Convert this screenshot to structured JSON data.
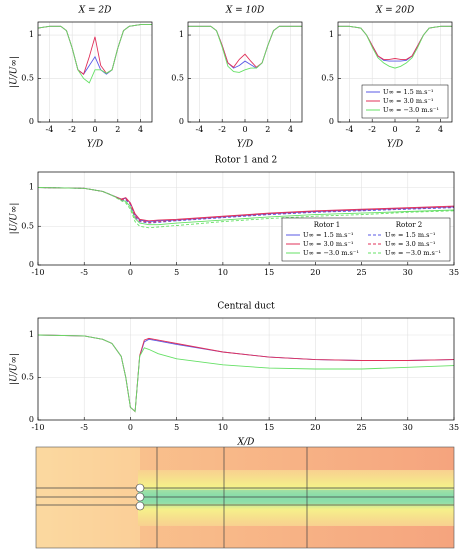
{
  "chart_data": [
    {
      "type": "line",
      "title": "X = 2D",
      "xlabel": "Y/D",
      "ylabel": "|U/U∞|",
      "xlim": [
        -5,
        5
      ],
      "xticks": [
        -4,
        -2,
        0,
        2,
        4
      ],
      "ylim": [
        0,
        1.15
      ],
      "yticks": [
        0,
        0.5,
        1
      ],
      "grid": true,
      "x": [
        -5,
        -4,
        -3,
        -2.5,
        -2,
        -1.5,
        -1,
        -0.5,
        0,
        0.5,
        1,
        1.5,
        2,
        2.5,
        3,
        4,
        5
      ],
      "series": [
        {
          "color": "#5a5ae6",
          "values": [
            1.08,
            1.1,
            1.1,
            1.05,
            0.85,
            0.6,
            0.55,
            0.65,
            0.75,
            0.6,
            0.55,
            0.6,
            0.85,
            1.05,
            1.1,
            1.12,
            1.12
          ]
        },
        {
          "color": "#e0305a",
          "values": [
            1.08,
            1.1,
            1.1,
            1.05,
            0.85,
            0.6,
            0.55,
            0.75,
            0.98,
            0.65,
            0.56,
            0.6,
            0.85,
            1.05,
            1.1,
            1.12,
            1.12
          ]
        },
        {
          "color": "#66e066",
          "values": [
            1.08,
            1.1,
            1.1,
            1.05,
            0.85,
            0.6,
            0.5,
            0.45,
            0.6,
            0.6,
            0.56,
            0.6,
            0.85,
            1.05,
            1.1,
            1.12,
            1.12
          ]
        }
      ]
    },
    {
      "type": "line",
      "title": "X = 10D",
      "xlabel": "Y/D",
      "xlim": [
        -5,
        5
      ],
      "xticks": [
        -4,
        -2,
        0,
        2,
        4
      ],
      "ylim": [
        0,
        1.15
      ],
      "yticks": [
        0,
        0.5,
        1
      ],
      "grid": true,
      "x": [
        -5,
        -4,
        -3,
        -2.5,
        -2,
        -1.5,
        -1,
        -0.5,
        0,
        0.5,
        1,
        1.5,
        2,
        2.5,
        3,
        4,
        5
      ],
      "series": [
        {
          "color": "#5a5ae6",
          "values": [
            1.1,
            1.1,
            1.1,
            1.05,
            0.88,
            0.68,
            0.62,
            0.65,
            0.7,
            0.66,
            0.62,
            0.68,
            0.88,
            1.05,
            1.1,
            1.1,
            1.1
          ]
        },
        {
          "color": "#e0305a",
          "values": [
            1.1,
            1.1,
            1.1,
            1.05,
            0.88,
            0.68,
            0.63,
            0.72,
            0.78,
            0.7,
            0.63,
            0.68,
            0.88,
            1.05,
            1.1,
            1.1,
            1.1
          ]
        },
        {
          "color": "#66e066",
          "values": [
            1.1,
            1.1,
            1.1,
            1.05,
            0.86,
            0.64,
            0.58,
            0.57,
            0.6,
            0.62,
            0.62,
            0.68,
            0.88,
            1.05,
            1.1,
            1.1,
            1.1
          ]
        }
      ]
    },
    {
      "type": "line",
      "title": "X = 20D",
      "xlabel": "Y/D",
      "xlim": [
        -5,
        5
      ],
      "xticks": [
        -4,
        -2,
        0,
        2,
        4
      ],
      "ylim": [
        0,
        1.15
      ],
      "yticks": [
        0,
        0.5,
        1
      ],
      "grid": true,
      "legend": "lower right",
      "x": [
        -5,
        -4,
        -3,
        -2.5,
        -2,
        -1.5,
        -1,
        -0.5,
        0,
        0.5,
        1,
        1.5,
        2,
        2.5,
        3,
        4,
        5
      ],
      "series": [
        {
          "name": "U∞ = 1.5 m.s⁻¹",
          "color": "#5a5ae6",
          "values": [
            1.1,
            1.1,
            1.08,
            1.0,
            0.88,
            0.76,
            0.71,
            0.7,
            0.7,
            0.7,
            0.71,
            0.76,
            0.88,
            1.0,
            1.08,
            1.1,
            1.1
          ]
        },
        {
          "name": "U∞ = 3.0 m.s⁻¹",
          "color": "#e0305a",
          "values": [
            1.1,
            1.1,
            1.08,
            1.0,
            0.88,
            0.76,
            0.72,
            0.72,
            0.73,
            0.72,
            0.72,
            0.76,
            0.88,
            1.0,
            1.08,
            1.1,
            1.1
          ]
        },
        {
          "name": "U∞ = −3.0 m.s⁻¹",
          "color": "#66e066",
          "values": [
            1.1,
            1.1,
            1.08,
            1.0,
            0.86,
            0.74,
            0.68,
            0.64,
            0.62,
            0.64,
            0.68,
            0.74,
            0.86,
            1.0,
            1.08,
            1.1,
            1.1
          ]
        }
      ]
    },
    {
      "type": "line",
      "title": "Rotor 1 and 2",
      "ylabel": "|U/U∞|",
      "xlim": [
        -10,
        35
      ],
      "xticks": [
        -10,
        -5,
        0,
        5,
        10,
        15,
        20,
        25,
        30,
        35
      ],
      "ylim": [
        0,
        1.2
      ],
      "yticks": [
        0,
        0.5,
        1
      ],
      "grid": true,
      "legend": "lower right",
      "legend_titles": [
        "Rotor 1",
        "Rotor 2"
      ],
      "x": [
        -10,
        -5,
        -3,
        -2,
        -1,
        -0.5,
        0,
        0.5,
        1,
        2,
        3,
        5,
        10,
        15,
        20,
        25,
        30,
        35
      ],
      "series": [
        {
          "name": "U∞ = 1.5 m.s⁻¹",
          "color": "#5a5ae6",
          "values": [
            1,
            0.99,
            0.95,
            0.9,
            0.85,
            0.86,
            0.8,
            0.65,
            0.58,
            0.56,
            0.57,
            0.58,
            0.62,
            0.66,
            0.69,
            0.71,
            0.73,
            0.75
          ]
        },
        {
          "name": "U∞ = 3.0 m.s⁻¹",
          "color": "#e0305a",
          "values": [
            1,
            0.99,
            0.95,
            0.9,
            0.85,
            0.87,
            0.8,
            0.66,
            0.59,
            0.57,
            0.58,
            0.59,
            0.63,
            0.67,
            0.7,
            0.72,
            0.74,
            0.76
          ]
        },
        {
          "name": "U∞ = −3.0 m.s⁻¹",
          "color": "#66e066",
          "values": [
            1,
            0.99,
            0.95,
            0.9,
            0.84,
            0.82,
            0.75,
            0.6,
            0.54,
            0.52,
            0.52,
            0.54,
            0.58,
            0.62,
            0.65,
            0.67,
            0.69,
            0.71
          ]
        },
        {
          "name": "U∞ = 1.5 m.s⁻¹",
          "color": "#5a5ae6",
          "dash": true,
          "values": [
            1,
            0.99,
            0.95,
            0.9,
            0.84,
            0.84,
            0.78,
            0.62,
            0.56,
            0.54,
            0.55,
            0.57,
            0.61,
            0.65,
            0.68,
            0.7,
            0.72,
            0.74
          ]
        },
        {
          "name": "U∞ = 3.0 m.s⁻¹",
          "color": "#e0305a",
          "dash": true,
          "values": [
            1,
            0.99,
            0.95,
            0.9,
            0.84,
            0.85,
            0.79,
            0.63,
            0.57,
            0.55,
            0.56,
            0.58,
            0.62,
            0.66,
            0.69,
            0.71,
            0.73,
            0.75
          ]
        },
        {
          "name": "U∞ = −3.0 m.s⁻¹",
          "color": "#66e066",
          "dash": true,
          "values": [
            1,
            0.99,
            0.95,
            0.9,
            0.83,
            0.8,
            0.72,
            0.56,
            0.5,
            0.48,
            0.49,
            0.51,
            0.56,
            0.6,
            0.63,
            0.65,
            0.68,
            0.7
          ]
        }
      ]
    },
    {
      "type": "line",
      "title": "Central duct",
      "xlabel": "X/D",
      "ylabel": "|U/U∞|",
      "xlim": [
        -10,
        35
      ],
      "xticks": [
        -10,
        -5,
        0,
        5,
        10,
        15,
        20,
        25,
        30,
        35
      ],
      "ylim": [
        0,
        1.2
      ],
      "yticks": [
        0,
        0.5,
        1
      ],
      "grid": true,
      "x": [
        -10,
        -5,
        -3,
        -2,
        -1,
        -0.5,
        0,
        0.5,
        1,
        1.5,
        2,
        3,
        5,
        10,
        15,
        20,
        25,
        30,
        35
      ],
      "series": [
        {
          "color": "#5a5ae6",
          "values": [
            1,
            0.99,
            0.95,
            0.9,
            0.75,
            0.5,
            0.15,
            0.1,
            0.75,
            0.92,
            0.95,
            0.93,
            0.89,
            0.8,
            0.74,
            0.71,
            0.7,
            0.7,
            0.71
          ]
        },
        {
          "color": "#e0305a",
          "values": [
            1,
            0.99,
            0.95,
            0.9,
            0.75,
            0.5,
            0.15,
            0.1,
            0.76,
            0.94,
            0.96,
            0.94,
            0.9,
            0.8,
            0.74,
            0.71,
            0.7,
            0.7,
            0.71
          ]
        },
        {
          "color": "#66e066",
          "values": [
            1,
            0.99,
            0.95,
            0.9,
            0.75,
            0.5,
            0.15,
            0.1,
            0.75,
            0.85,
            0.83,
            0.78,
            0.72,
            0.65,
            0.61,
            0.6,
            0.6,
            0.62,
            0.64
          ]
        }
      ]
    }
  ]
}
